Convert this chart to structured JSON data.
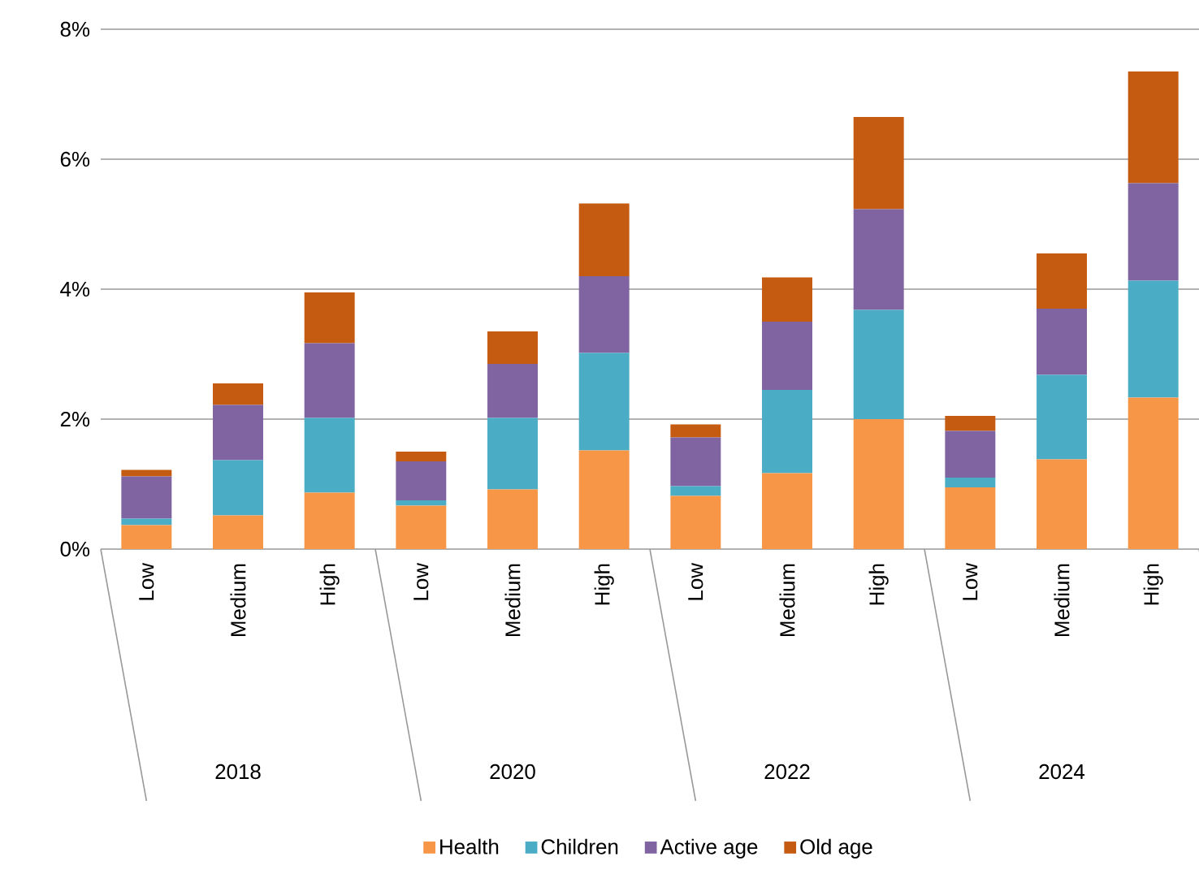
{
  "chart_data": {
    "type": "bar",
    "stacked": true,
    "categories": [
      "Low",
      "Medium",
      "High",
      "Low",
      "Medium",
      "High",
      "Low",
      "Medium",
      "High",
      "Low",
      "Medium",
      "High"
    ],
    "annotations": [
      "2018",
      "2020",
      "2022",
      "2024"
    ],
    "series": [
      {
        "name": "Health",
        "color": "#f79646",
        "values": [
          0.37,
          0.52,
          0.87,
          0.67,
          0.92,
          1.52,
          0.82,
          1.17,
          2.0,
          0.95,
          1.38,
          2.33
        ]
      },
      {
        "name": "Children",
        "color": "#4bacc6",
        "values": [
          0.1,
          0.85,
          1.15,
          0.08,
          1.1,
          1.5,
          0.15,
          1.28,
          1.68,
          0.15,
          1.3,
          1.8
        ]
      },
      {
        "name": "Active age",
        "color": "#8064a2",
        "values": [
          0.65,
          0.85,
          1.15,
          0.6,
          0.83,
          1.18,
          0.75,
          1.05,
          1.55,
          0.72,
          1.02,
          1.5
        ]
      },
      {
        "name": "Old age",
        "color": "#c55a11",
        "values": [
          0.1,
          0.33,
          0.78,
          0.15,
          0.5,
          1.12,
          0.2,
          0.68,
          1.42,
          0.23,
          0.85,
          1.72
        ]
      }
    ],
    "ylim": [
      0,
      8
    ],
    "yticks": [
      {
        "value": 0,
        "label": "0%"
      },
      {
        "value": 2,
        "label": "2%"
      },
      {
        "value": 4,
        "label": "4%"
      },
      {
        "value": 6,
        "label": "6%"
      },
      {
        "value": 8,
        "label": "8%"
      }
    ],
    "grid": "y",
    "legend": "bottom"
  }
}
